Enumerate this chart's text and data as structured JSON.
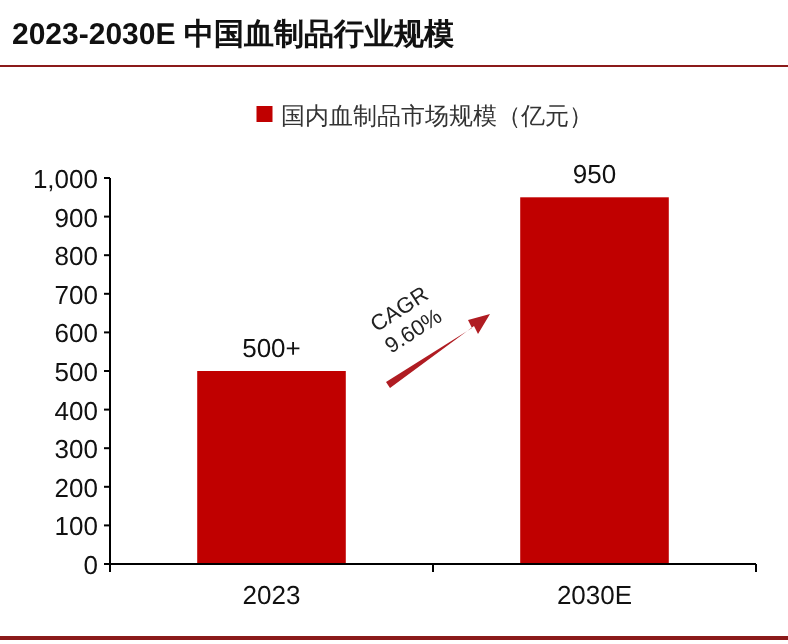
{
  "chart_data": {
    "type": "bar",
    "title": "2023-2030E 中国血制品行业规模",
    "categories": [
      "2023",
      "2030E"
    ],
    "series": [
      {
        "name": "国内血制品市场规模（亿元）",
        "color": "#c00000",
        "values": [
          500,
          950
        ],
        "value_labels": [
          "500+",
          "950"
        ]
      }
    ],
    "ylim": [
      0,
      1000
    ],
    "yticks": [
      0,
      100,
      200,
      300,
      400,
      500,
      600,
      700,
      800,
      900,
      {
        "value": 1000,
        "label": "1,000"
      }
    ],
    "legend": "top",
    "grid": false,
    "annotations": [
      "CAGR 9.60%"
    ]
  }
}
